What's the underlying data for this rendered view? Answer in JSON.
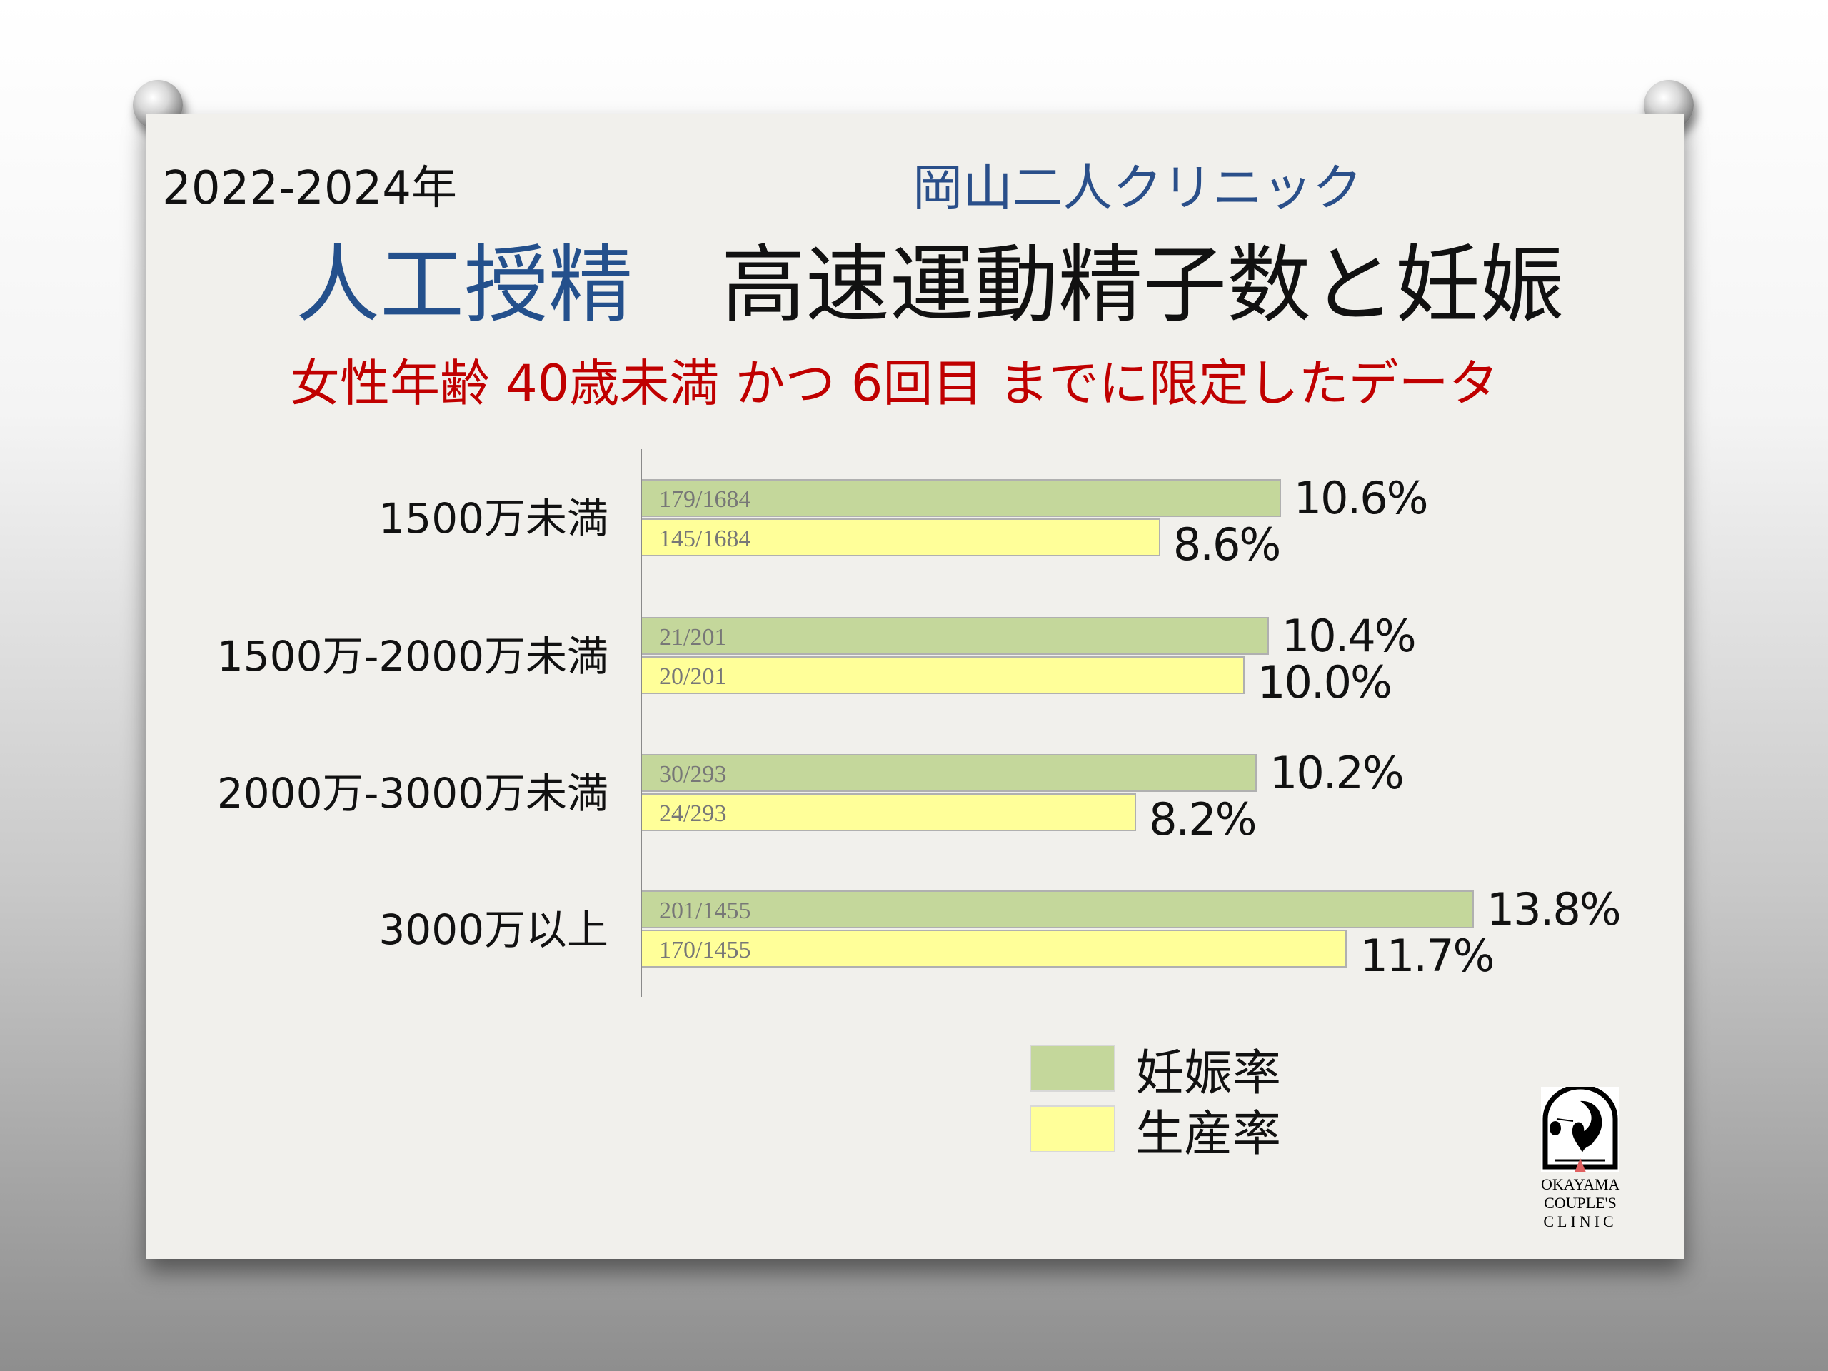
{
  "header": {
    "year": "2022-2024年",
    "clinic": "岡山二人クリニック",
    "title_blue": "人工授精",
    "title_black": "高速運動精子数と妊娠",
    "subtitle": "女性年齢 40歳未満 かつ 6回目 までに限定したデータ"
  },
  "chart_data": {
    "type": "bar",
    "orientation": "horizontal",
    "categories": [
      "1500万未満",
      "1500万-2000万未満",
      "2000万-3000万未満",
      "3000万以上"
    ],
    "series": [
      {
        "name": "妊娠率",
        "color": "#c4d79b",
        "values": [
          10.6,
          10.4,
          10.2,
          13.8
        ],
        "labels": [
          "10.6%",
          "10.4%",
          "10.2%",
          "13.8%"
        ],
        "fractions": [
          "179/1684",
          "21/201",
          "30/293",
          "201/1455"
        ]
      },
      {
        "name": "生産率",
        "color": "#ffff99",
        "values": [
          8.6,
          10.0,
          8.2,
          11.7
        ],
        "labels": [
          "8.6%",
          "10.0%",
          "8.2%",
          "11.7%"
        ],
        "fractions": [
          "145/1684",
          "20/201",
          "24/293",
          "170/1455"
        ]
      }
    ],
    "xlim": [
      0,
      16
    ],
    "legend": "bottom-right",
    "grid": false
  },
  "logo": {
    "line1": "OKAYAMA",
    "line2": "COUPLE'S",
    "line3": "CLINIC"
  }
}
